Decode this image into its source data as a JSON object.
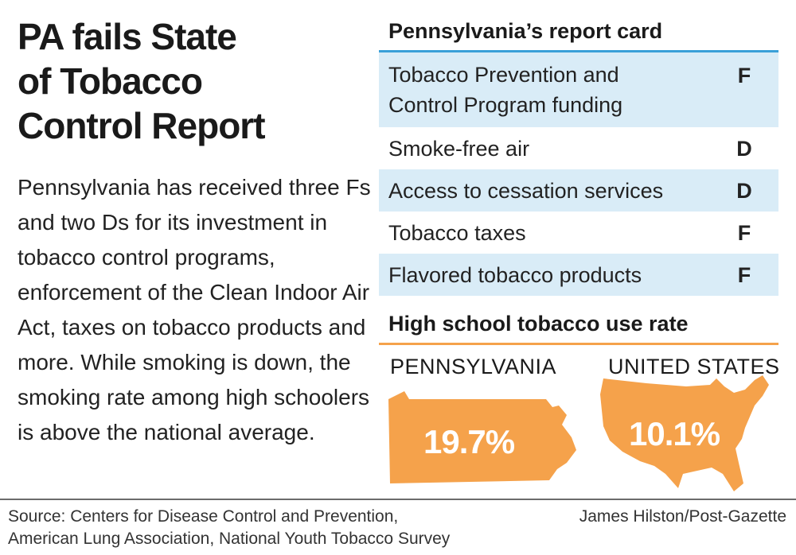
{
  "headline": [
    "PA fails State",
    "of Tobacco",
    "Control Report"
  ],
  "body_text": "Pennsylvania has received three Fs and two Ds for its investment in tobacco control programs, enforcement of the Clean Indoor Air Act, taxes on tobacco products and more. While smoking is down, the smoking rate among high schoolers is above the national average.",
  "report_card": {
    "title": "Pennsylvania’s report card",
    "rows": [
      {
        "label": "Tobacco Prevention and Control Program funding",
        "grade": "F"
      },
      {
        "label": "Smoke-free air",
        "grade": "D"
      },
      {
        "label": "Access to cessation services",
        "grade": "D"
      },
      {
        "label": "Tobacco taxes",
        "grade": "F"
      },
      {
        "label": "Flavored tobacco products",
        "grade": "F"
      }
    ]
  },
  "high_school": {
    "title": "High school tobacco use rate",
    "pennsylvania": {
      "label": "PENNSYLVANIA",
      "value": "19.7%"
    },
    "united_states": {
      "label": "UNITED STATES",
      "value": "10.1%"
    },
    "map_color": "#f5a24b"
  },
  "footer": {
    "source_line1": "Source: Centers for Disease Control and Prevention,",
    "source_line2": "American Lung Association, National Youth Tobacco Survey",
    "credit": "James Hilston/Post-Gazette"
  },
  "colors": {
    "report_card_accent": "#3aa0d8",
    "row_shade": "#d9ecf7",
    "map_orange": "#f5a24b"
  }
}
